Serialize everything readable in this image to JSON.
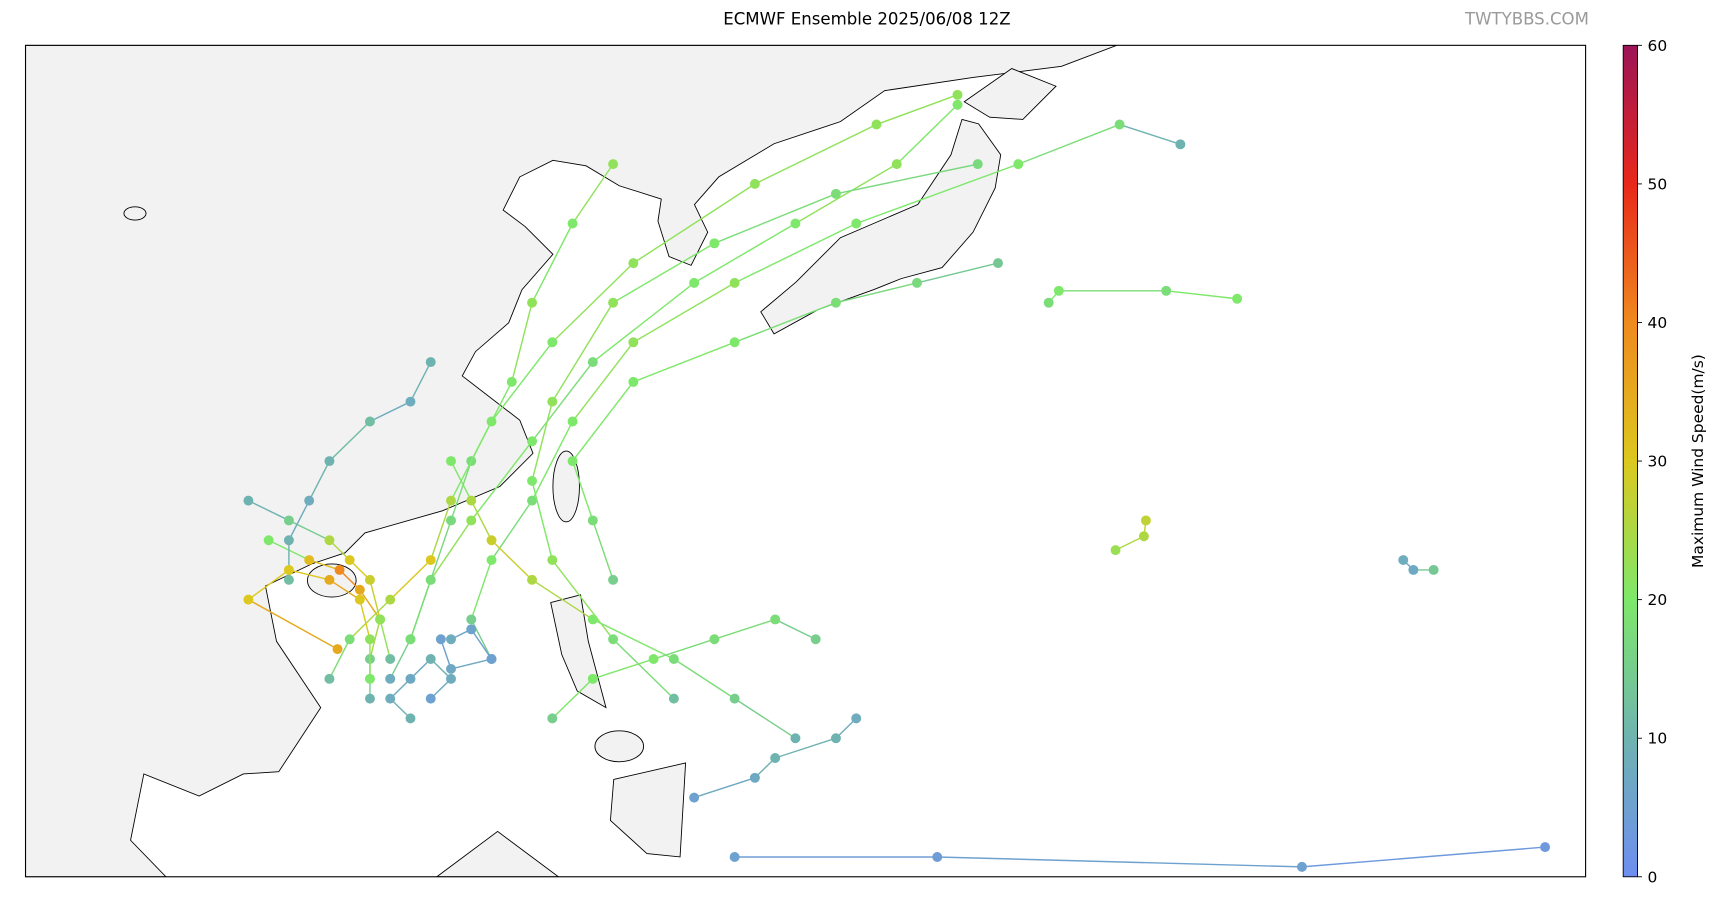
{
  "title": "ECMWF Ensemble 2025/06/08 12Z",
  "watermark": "TWTYBBS.COM",
  "extent": {
    "lon": [
      95,
      172
    ],
    "lat": [
      4,
      46
    ]
  },
  "colorbar": {
    "label": "Maximum Wind Speed(m/s)",
    "lim": [
      0,
      60
    ],
    "ticks": [
      0,
      10,
      20,
      30,
      40,
      50,
      60
    ],
    "colors": [
      "#6d8ef0",
      "#6fb3b0",
      "#7ee86a",
      "#dcc81e",
      "#ef8a1e",
      "#e8281a",
      "#9c1458"
    ]
  },
  "tracks": [
    {
      "points": [
        [
          113,
          14,
          8
        ],
        [
          114,
          16,
          15
        ],
        [
          115,
          19,
          20
        ],
        [
          117,
          22,
          22
        ],
        [
          120,
          26,
          20
        ],
        [
          123,
          30,
          18
        ],
        [
          128,
          34,
          20
        ],
        [
          133,
          37,
          20
        ],
        [
          138,
          40,
          22
        ],
        [
          141,
          43,
          20
        ]
      ]
    },
    {
      "points": [
        [
          112,
          13,
          10
        ],
        [
          112,
          15,
          15
        ],
        [
          112.5,
          17,
          25
        ],
        [
          112,
          19,
          28
        ],
        [
          111,
          20,
          30
        ],
        [
          110,
          21,
          25
        ],
        [
          108,
          22,
          15
        ],
        [
          106,
          23,
          10
        ]
      ]
    },
    {
      "points": [
        [
          113,
          15,
          12
        ],
        [
          112.5,
          17,
          22
        ],
        [
          111.5,
          18.5,
          35
        ],
        [
          110.5,
          19.5,
          40
        ],
        [
          109,
          20,
          32
        ],
        [
          107,
          21,
          20
        ]
      ]
    },
    {
      "points": [
        [
          118,
          15,
          8
        ],
        [
          117,
          17,
          15
        ],
        [
          118,
          20,
          20
        ],
        [
          120,
          23,
          18
        ],
        [
          122,
          27,
          20
        ],
        [
          125,
          31,
          22
        ],
        [
          130,
          34,
          22
        ],
        [
          136,
          37,
          20
        ],
        [
          144,
          40,
          20
        ],
        [
          149,
          42,
          18
        ],
        [
          152,
          41,
          10
        ]
      ]
    },
    {
      "points": [
        [
          127,
          13,
          12
        ],
        [
          124,
          16,
          18
        ],
        [
          121,
          20,
          22
        ],
        [
          120,
          24,
          20
        ],
        [
          121,
          28,
          22
        ],
        [
          124,
          33,
          22
        ],
        [
          129,
          36,
          20
        ],
        [
          135,
          38.5,
          18
        ],
        [
          142,
          40,
          17
        ]
      ]
    },
    {
      "points": [
        [
          133,
          11,
          10
        ],
        [
          130,
          13,
          15
        ],
        [
          127,
          15,
          18
        ],
        [
          123,
          17,
          20
        ],
        [
          120,
          19,
          25
        ],
        [
          118,
          21,
          28
        ],
        [
          117,
          23,
          25
        ],
        [
          116,
          25,
          20
        ]
      ]
    },
    {
      "points": [
        [
          115,
          13,
          5
        ],
        [
          116,
          14,
          8
        ],
        [
          115,
          15,
          10
        ],
        [
          114,
          14,
          7
        ],
        [
          113,
          13,
          8
        ],
        [
          114,
          12,
          10
        ]
      ]
    },
    {
      "points": [
        [
          114,
          16,
          18
        ],
        [
          115,
          19,
          18
        ],
        [
          116,
          22,
          17
        ],
        [
          117,
          25,
          18
        ],
        [
          119,
          29,
          20
        ],
        [
          120,
          33,
          22
        ],
        [
          122,
          37,
          20
        ],
        [
          124,
          40,
          22
        ]
      ]
    },
    {
      "points": [
        [
          124,
          19,
          15
        ],
        [
          123,
          22,
          18
        ],
        [
          122,
          25,
          20
        ],
        [
          125,
          29,
          20
        ],
        [
          130,
          31,
          20
        ],
        [
          135,
          33,
          18
        ],
        [
          139,
          34,
          17
        ],
        [
          143,
          35,
          14
        ]
      ]
    },
    {
      "points": [
        [
          148.8,
          20.5,
          23
        ],
        [
          150.2,
          21.2,
          25
        ],
        [
          150.3,
          22,
          27
        ]
      ]
    },
    {
      "points": [
        [
          145.5,
          33,
          18
        ],
        [
          146,
          33.6,
          20
        ],
        [
          151.3,
          33.6,
          18
        ],
        [
          154.8,
          33.2,
          20
        ]
      ]
    },
    {
      "points": [
        [
          163,
          20,
          8
        ],
        [
          163.5,
          19.5,
          7
        ],
        [
          164.5,
          19.5,
          14
        ]
      ]
    },
    {
      "points": [
        [
          128,
          8,
          5
        ],
        [
          131,
          9,
          7
        ],
        [
          132,
          10,
          10
        ],
        [
          135,
          11,
          10
        ],
        [
          136,
          12,
          8
        ]
      ]
    },
    {
      "points": [
        [
          130,
          5,
          5
        ],
        [
          140,
          5,
          4
        ],
        [
          158,
          4.5,
          5
        ],
        [
          170,
          5.5,
          3
        ]
      ]
    },
    {
      "points": [
        [
          121,
          12,
          15
        ],
        [
          123,
          14,
          20
        ],
        [
          126,
          15,
          20
        ],
        [
          129,
          16,
          18
        ],
        [
          132,
          17,
          18
        ],
        [
          134,
          16,
          15
        ]
      ]
    },
    {
      "points": [
        [
          110,
          14,
          12
        ],
        [
          111,
          16,
          18
        ],
        [
          113,
          18,
          25
        ],
        [
          115,
          20,
          30
        ],
        [
          116,
          23,
          25
        ],
        [
          118,
          27,
          20
        ],
        [
          121,
          31,
          20
        ],
        [
          125,
          35,
          22
        ],
        [
          131,
          39,
          22
        ],
        [
          137,
          42,
          22
        ],
        [
          141,
          43.5,
          22
        ]
      ]
    },
    {
      "points": [
        [
          108,
          19,
          12
        ],
        [
          108,
          21,
          10
        ],
        [
          109,
          23,
          8
        ],
        [
          110,
          25,
          10
        ],
        [
          112,
          27,
          12
        ],
        [
          114,
          28,
          8
        ],
        [
          115,
          30,
          10
        ]
      ]
    },
    {
      "points": [
        [
          112,
          14,
          20
        ],
        [
          112,
          16,
          22
        ],
        [
          111.5,
          18,
          30
        ],
        [
          110,
          19,
          35
        ],
        [
          108,
          19.5,
          30
        ],
        [
          106,
          18,
          30
        ],
        [
          110.4,
          15.5,
          35
        ]
      ]
    },
    {
      "points": [
        [
          116,
          16,
          8
        ],
        [
          117,
          16.5,
          6
        ],
        [
          118,
          15,
          5
        ],
        [
          116,
          14.5,
          7
        ],
        [
          115.5,
          16,
          5
        ]
      ]
    }
  ]
}
